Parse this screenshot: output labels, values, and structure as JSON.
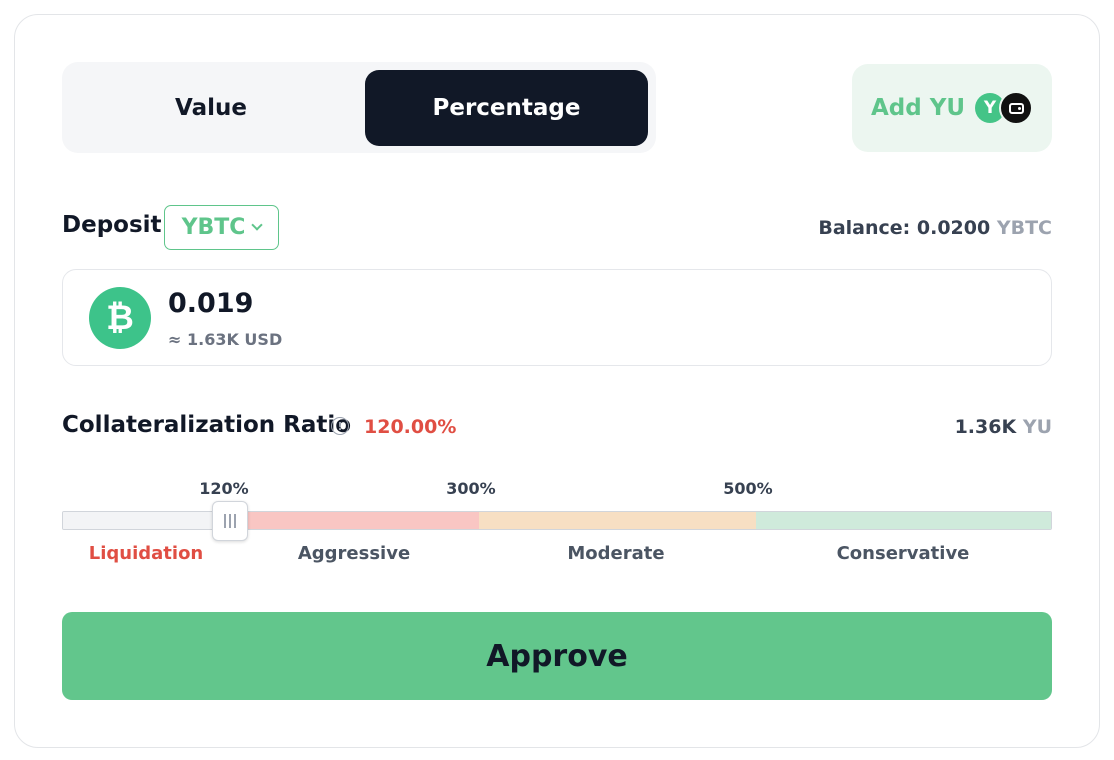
{
  "mode_toggle": {
    "value_label": "Value",
    "percentage_label": "Percentage",
    "selected": "Percentage"
  },
  "add_token": {
    "label": "Add YU",
    "coin_glyph": "Y",
    "icons": [
      "yu-coin-icon",
      "wallet-icon"
    ]
  },
  "deposit": {
    "label": "Deposit",
    "token": "YBTC",
    "balance_label": "Balance: 0.0200",
    "balance_unit": "YBTC"
  },
  "amount": {
    "value": "0.019",
    "usd": "≈ 1.63K USD",
    "icon": "bitcoin-icon",
    "icon_glyph": "₿"
  },
  "collateralization": {
    "label": "Collateralization Ratio",
    "info_glyph": "!",
    "value": "120.00%",
    "mint_value": "1.36K",
    "mint_unit": "YU"
  },
  "slider": {
    "ticks": [
      "120%",
      "300%",
      "500%"
    ],
    "zones": [
      "Liquidation",
      "Aggressive",
      "Moderate",
      "Conservative"
    ],
    "current_percent": 120,
    "colors": {
      "liquidation": "#f3f4f6",
      "aggressive": "#f9c6c3",
      "moderate": "#f7dfc3",
      "conservative": "#cfeadb"
    }
  },
  "action": {
    "approve_label": "Approve"
  },
  "colors": {
    "accent_green": "#5fc58b",
    "danger_red": "#e04e43",
    "dark": "#111827"
  }
}
